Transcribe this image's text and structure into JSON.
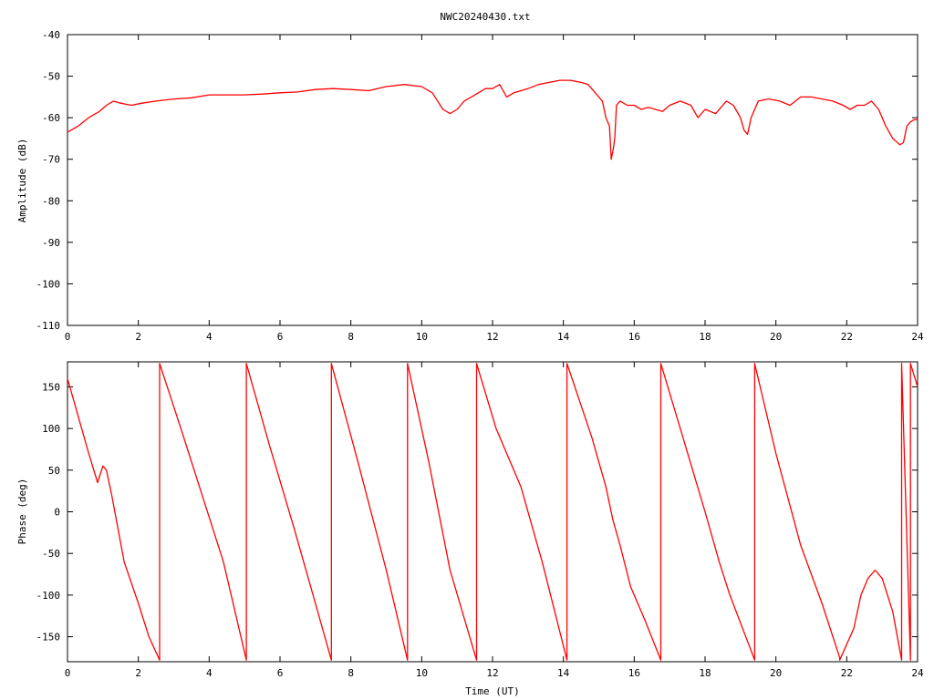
{
  "title": "NWC20240430.txt",
  "colors": {
    "trace": "#ff0000",
    "axes": "#000000",
    "background": "#ffffff"
  },
  "chart_data": [
    {
      "type": "line",
      "ylabel": "Amplitude (dB)",
      "xlabel": "",
      "xlim": [
        0,
        24
      ],
      "ylim": [
        -110,
        -40
      ],
      "xticks": [
        0,
        2,
        4,
        6,
        8,
        10,
        12,
        14,
        16,
        18,
        20,
        22,
        24
      ],
      "yticks": [
        -40,
        -50,
        -60,
        -70,
        -80,
        -90,
        -100,
        -110
      ],
      "grid": false,
      "series": [
        {
          "x": [
            0,
            0.3,
            0.6,
            0.9,
            1.1,
            1.3,
            1.5,
            1.8,
            2.1,
            2.5,
            3.0,
            3.5,
            4.0,
            4.5,
            5.0,
            5.5,
            6.0,
            6.5,
            7.0,
            7.5,
            8.0,
            8.5,
            9.0,
            9.5,
            10.0,
            10.3,
            10.6,
            10.8,
            11.0,
            11.2,
            11.4,
            11.6,
            11.8,
            12.0,
            12.2,
            12.4,
            12.6,
            12.8,
            13.0,
            13.3,
            13.6,
            13.9,
            14.2,
            14.5,
            14.7,
            14.9,
            15.1,
            15.2,
            15.3,
            15.35,
            15.4,
            15.45,
            15.5,
            15.6,
            15.8,
            16.0,
            16.2,
            16.4,
            16.6,
            16.8,
            17.0,
            17.3,
            17.6,
            17.8,
            18.0,
            18.3,
            18.6,
            18.8,
            19.0,
            19.1,
            19.2,
            19.3,
            19.5,
            19.8,
            20.1,
            20.4,
            20.7,
            21.0,
            21.3,
            21.6,
            21.9,
            22.1,
            22.3,
            22.5,
            22.7,
            22.9,
            23.1,
            23.3,
            23.5,
            23.6,
            23.7,
            23.8,
            23.9,
            24.0
          ],
          "y": [
            -63.5,
            -62,
            -60,
            -58.5,
            -57,
            -56,
            -56.5,
            -57,
            -56.5,
            -56,
            -55.5,
            -55.2,
            -54.5,
            -54.5,
            -54.5,
            -54.3,
            -54,
            -53.8,
            -53.2,
            -53,
            -53.2,
            -53.5,
            -52.5,
            -52,
            -52.5,
            -54,
            -58,
            -59,
            -58,
            -56,
            -55,
            -54,
            -53,
            -53,
            -52,
            -55,
            -54,
            -53.5,
            -53,
            -52,
            -51.5,
            -51,
            -51,
            -51.5,
            -52,
            -54,
            -56,
            -60,
            -62,
            -70,
            -68,
            -65,
            -57,
            -56,
            -57,
            -57,
            -58,
            -57.5,
            -58,
            -58.5,
            -57,
            -56,
            -57,
            -60,
            -58,
            -59,
            -56,
            -57,
            -60,
            -63,
            -64,
            -60,
            -56,
            -55.5,
            -56,
            -57,
            -55,
            -55,
            -55.5,
            -56,
            -57,
            -58,
            -57,
            -57,
            -56,
            -58,
            -62,
            -65,
            -66.5,
            -66,
            -62,
            -61,
            -60.5,
            -60.5
          ]
        }
      ]
    },
    {
      "type": "line",
      "ylabel": "Phase (deg)",
      "xlabel": "Time (UT)",
      "xlim": [
        0,
        24
      ],
      "ylim": [
        -180,
        180
      ],
      "xticks": [
        0,
        2,
        4,
        6,
        8,
        10,
        12,
        14,
        16,
        18,
        20,
        22,
        24
      ],
      "yticks": [
        150,
        100,
        50,
        0,
        -50,
        -100,
        -150
      ],
      "grid": false,
      "series": [
        {
          "x": [
            0,
            0.4,
            0.6,
            0.85,
            1.0,
            1.1,
            1.25,
            1.6,
            2.0,
            2.3,
            2.6,
            2.6,
            3.2,
            3.8,
            4.4,
            5.05,
            5.05,
            5.7,
            6.4,
            7.0,
            7.45,
            7.45,
            8.2,
            9.0,
            9.6,
            9.6,
            10.2,
            10.8,
            11.55,
            11.55,
            12.1,
            12.8,
            13.4,
            14.1,
            14.1,
            14.8,
            15.2,
            15.4,
            15.6,
            15.9,
            16.3,
            16.75,
            16.75,
            17.3,
            18.0,
            18.4,
            18.7,
            19.4,
            19.4,
            20.0,
            20.7,
            21.3,
            21.8,
            21.8,
            22.2,
            22.4,
            22.6,
            22.8,
            23.0,
            23.3,
            23.55,
            23.55,
            23.8,
            23.8,
            24.0
          ],
          "y": [
            160,
            100,
            70,
            35,
            55,
            50,
            20,
            -60,
            -110,
            -150,
            -178,
            178,
            100,
            20,
            -60,
            -178,
            178,
            80,
            -20,
            -110,
            -178,
            178,
            60,
            -70,
            -178,
            178,
            60,
            -70,
            -178,
            178,
            100,
            30,
            -60,
            -178,
            178,
            90,
            30,
            -10,
            -40,
            -90,
            -130,
            -178,
            178,
            100,
            0,
            -60,
            -100,
            -178,
            178,
            70,
            -40,
            -110,
            -175,
            -178,
            -140,
            -100,
            -80,
            -70,
            -80,
            -120,
            -178,
            178,
            -178,
            178,
            150
          ]
        }
      ]
    }
  ]
}
